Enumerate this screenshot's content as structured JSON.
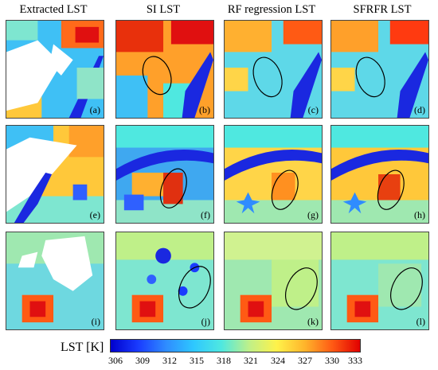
{
  "columns": [
    "Extracted LST",
    "SI LST",
    "RF regression LST",
    "SFRFR LST"
  ],
  "panel_labels": [
    "(a)",
    "(b)",
    "(c)",
    "(d)",
    "(e)",
    "(f)",
    "(g)",
    "(h)",
    "(i)",
    "(j)",
    "(k)",
    "(l)"
  ],
  "colorbar": {
    "label": "LST [K]",
    "ticks": [
      "306",
      "309",
      "312",
      "315",
      "318",
      "321",
      "324",
      "327",
      "330",
      "333"
    ],
    "colors": [
      "#0000cd",
      "#1a3cff",
      "#2f8cff",
      "#2ec8ff",
      "#4fe8e0",
      "#bff089",
      "#fff24a",
      "#ffb52b",
      "#ff5a14",
      "#e10000"
    ]
  }
}
